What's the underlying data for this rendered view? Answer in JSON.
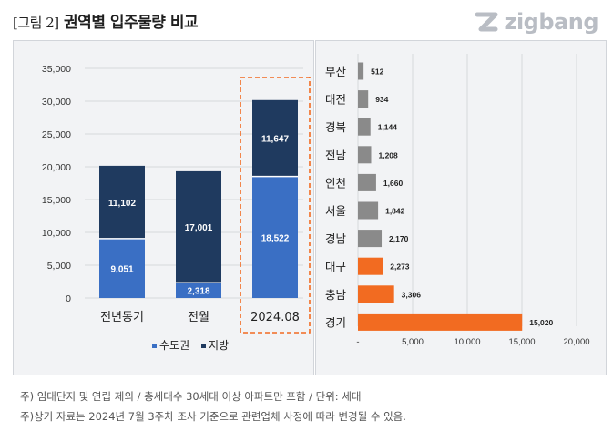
{
  "header": {
    "figure_prefix": "[그림 2]",
    "title": "권역별 입주물량 비교",
    "logo_text": "zigbang"
  },
  "colors": {
    "capital": "#3a6fc4",
    "local": "#1f3a5f",
    "gray_bar": "#8a8a8a",
    "highlight_bar": "#f26b21",
    "highlight_box": "#f26b21"
  },
  "chart_data": [
    {
      "type": "bar",
      "stacked": true,
      "categories": [
        "전년동기",
        "전월",
        "2024.08"
      ],
      "series": [
        {
          "name": "수도권",
          "values": [
            9051,
            2318,
            18522
          ]
        },
        {
          "name": "지방",
          "values": [
            11102,
            17001,
            11647
          ]
        }
      ],
      "data_labels": {
        "수도권": [
          "9,051",
          "2,318",
          "18,522"
        ],
        "지방": [
          "11,102",
          "17,001",
          "11,647"
        ]
      },
      "yticks": [
        "0",
        "5,000",
        "10,000",
        "15,000",
        "20,000",
        "25,000",
        "30,000",
        "35,000"
      ],
      "ylim": [
        0,
        35000
      ],
      "highlight_category": "2024.08",
      "legend_position": "bottom",
      "grid": true
    },
    {
      "type": "bar",
      "orientation": "horizontal",
      "categories": [
        "부산",
        "대전",
        "경북",
        "전남",
        "인천",
        "서울",
        "경남",
        "대구",
        "충남",
        "경기"
      ],
      "values": [
        512,
        934,
        1144,
        1208,
        1660,
        1842,
        2170,
        2273,
        3306,
        15020
      ],
      "data_labels": [
        "512",
        "934",
        "1,144",
        "1,208",
        "1,660",
        "1,842",
        "2,170",
        "2,273",
        "3,306",
        "15,020"
      ],
      "highlighted": [
        false,
        false,
        false,
        false,
        false,
        false,
        false,
        true,
        true,
        true
      ],
      "xticks": [
        "-",
        "5,000",
        "10,000",
        "15,000",
        "20,000"
      ],
      "xlim": [
        0,
        20000
      ],
      "grid": true
    }
  ],
  "notes": [
    "주) 임대단지 및 연립 제외 / 총세대수 30세대 이상 아파트만 포함 / 단위: 세대",
    "주)상기 자료는 2024년 7월 3주차 조사 기준으로 관련업체 사정에 따라 변경될 수 있음."
  ]
}
